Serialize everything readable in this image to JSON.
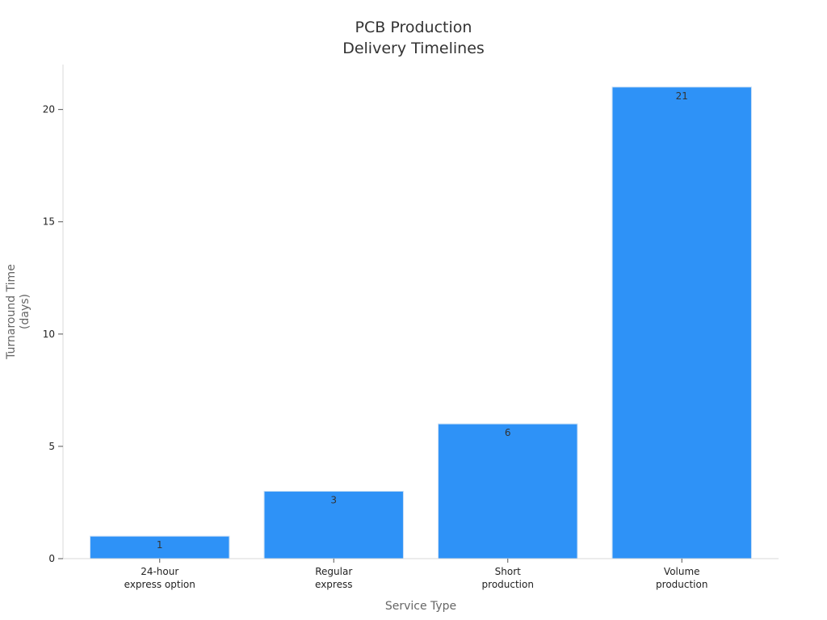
{
  "chart_data": {
    "type": "bar",
    "title": [
      "PCB Production",
      "Delivery Timelines"
    ],
    "xlabel": "Service Type",
    "ylabel": [
      "Turnaround Time",
      "(days)"
    ],
    "categories": [
      [
        "24-hour",
        "express option"
      ],
      [
        "Regular",
        "express"
      ],
      [
        "Short",
        "production"
      ],
      [
        "Volume",
        "production"
      ]
    ],
    "series": [
      {
        "values": [
          1,
          3,
          6,
          21
        ]
      }
    ],
    "ylim": [
      0,
      22
    ],
    "yticks": [
      0,
      5,
      10,
      15,
      20
    ],
    "grid": false,
    "legend": "none",
    "bar_color": "#2e92f7",
    "data_labels": [
      "1",
      "3",
      "6",
      "21"
    ]
  }
}
